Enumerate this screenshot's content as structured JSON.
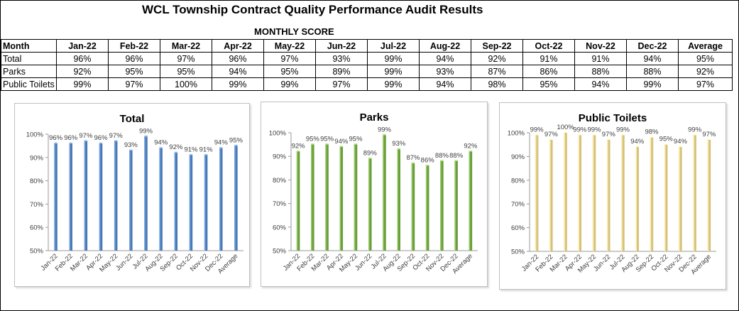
{
  "header": {
    "title": "WCL Township Contract Quality Performance Audit Results",
    "subtitle": "MONTHLY SCORE"
  },
  "table": {
    "columns": [
      "Month",
      "Jan-22",
      "Feb-22",
      "Mar-22",
      "Apr-22",
      "May-22",
      "Jun-22",
      "Jul-22",
      "Aug-22",
      "Sep-22",
      "Oct-22",
      "Nov-22",
      "Dec-22",
      "Average"
    ],
    "rows": [
      {
        "label": "Total",
        "cells": [
          "96%",
          "96%",
          "97%",
          "96%",
          "97%",
          "93%",
          "99%",
          "94%",
          "92%",
          "91%",
          "91%",
          "94%",
          "95%"
        ]
      },
      {
        "label": "Parks",
        "cells": [
          "92%",
          "95%",
          "95%",
          "94%",
          "95%",
          "89%",
          "99%",
          "93%",
          "87%",
          "86%",
          "88%",
          "88%",
          "92%"
        ]
      },
      {
        "label": "Public Toilets",
        "cells": [
          "99%",
          "97%",
          "100%",
          "99%",
          "99%",
          "97%",
          "99%",
          "94%",
          "98%",
          "95%",
          "94%",
          "99%",
          "97%"
        ]
      }
    ]
  },
  "chart_data": [
    {
      "type": "bar",
      "title": "Total",
      "categories": [
        "Jan-22",
        "Feb-22",
        "Mar-22",
        "Apr-22",
        "May-22",
        "Jun-22",
        "Jul-22",
        "Aug-22",
        "Sep-22",
        "Oct-22",
        "Nov-22",
        "Dec-22",
        "Average"
      ],
      "values": [
        96,
        96,
        97,
        96,
        97,
        93,
        99,
        94,
        92,
        91,
        91,
        94,
        95
      ],
      "data_labels": [
        "96%",
        "96%",
        "97%",
        "96%",
        "97%",
        "93%",
        "99%",
        "94%",
        "92%",
        "91%",
        "91%",
        "94%",
        "95%"
      ],
      "yticks": [
        "50%",
        "60%",
        "70%",
        "80%",
        "90%",
        "100%"
      ],
      "ylim": [
        50,
        100
      ],
      "color": "#4a7ab5",
      "grid": false,
      "legend": "none"
    },
    {
      "type": "bar",
      "title": "Parks",
      "categories": [
        "Jan-22",
        "Feb-22",
        "Mar-22",
        "Apr-22",
        "May-22",
        "Jun-22",
        "Jul-22",
        "Aug-22",
        "Sep-22",
        "Oct-22",
        "Nov-22",
        "Dec-22",
        "Average"
      ],
      "values": [
        92,
        95,
        95,
        94,
        95,
        89,
        99,
        93,
        87,
        86,
        88,
        88,
        92
      ],
      "data_labels": [
        "92%",
        "95%",
        "95%",
        "94%",
        "95%",
        "89%",
        "99%",
        "93%",
        "87%",
        "86%",
        "88%",
        "88%",
        "92%"
      ],
      "yticks": [
        "50%",
        "60%",
        "70%",
        "80%",
        "90%",
        "100%"
      ],
      "ylim": [
        50,
        100
      ],
      "color": "#6a9e3a",
      "grid": false,
      "legend": "none"
    },
    {
      "type": "bar",
      "title": "Public Toilets",
      "categories": [
        "Jan-22",
        "Feb-22",
        "Mar-22",
        "Apr-22",
        "May-22",
        "Jun-22",
        "Jul-22",
        "Aug-22",
        "Sep-22",
        "Oct-22",
        "Nov-22",
        "Dec-22",
        "Average"
      ],
      "values": [
        99,
        97,
        100,
        99,
        99,
        97,
        99,
        94,
        98,
        95,
        94,
        99,
        97
      ],
      "data_labels": [
        "99%",
        "97%",
        "100%",
        "99%",
        "99%",
        "97%",
        "99%",
        "94%",
        "98%",
        "95%",
        "94%",
        "99%",
        "97%"
      ],
      "yticks": [
        "50%",
        "60%",
        "70%",
        "80%",
        "90%",
        "100%"
      ],
      "ylim": [
        50,
        100
      ],
      "color": "#d4c27e",
      "grid": false,
      "legend": "none"
    }
  ]
}
